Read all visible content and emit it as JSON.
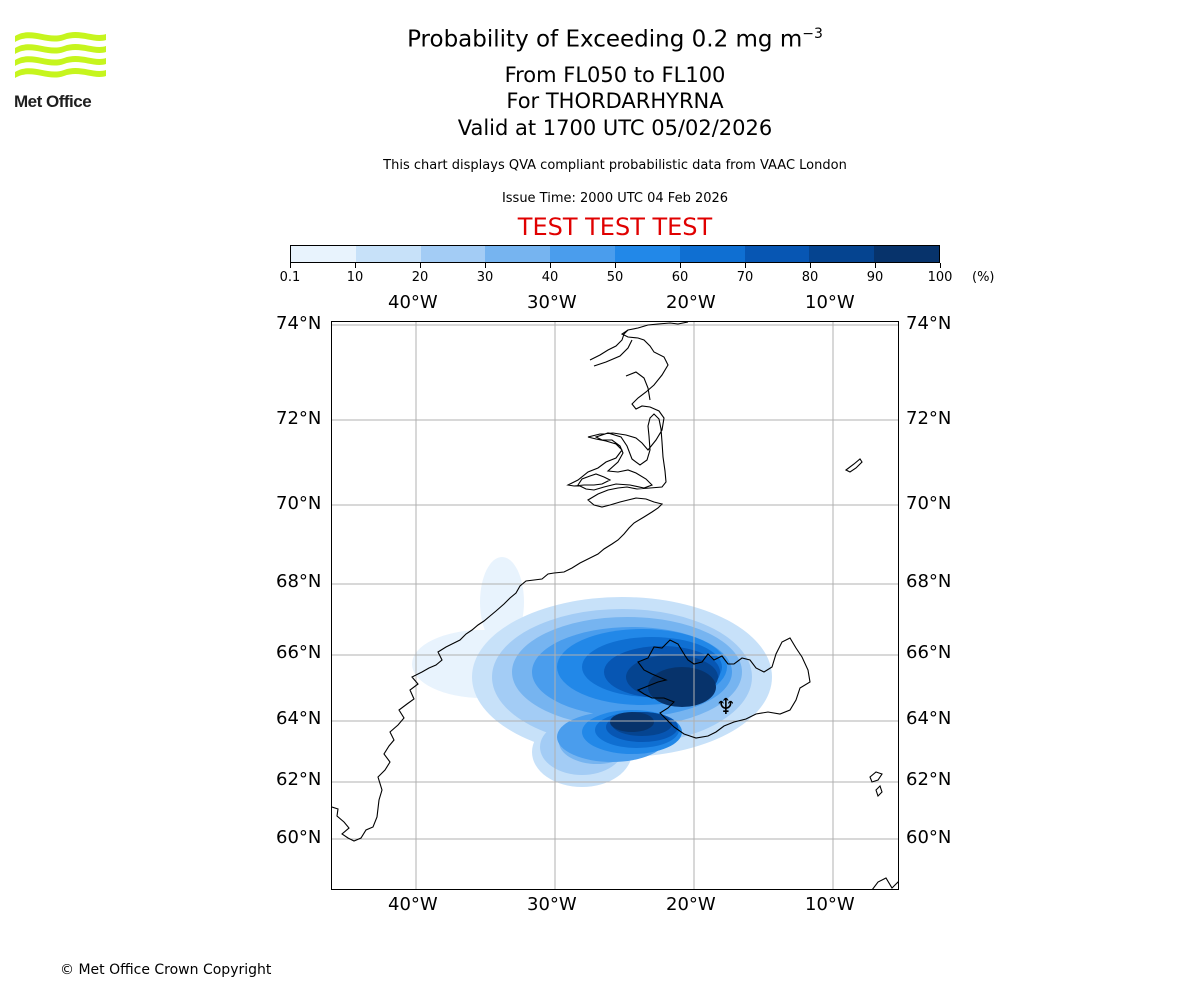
{
  "header": {
    "logo_text": "Met Office",
    "title_main": "Probability of Exceeding 0.2 mg m",
    "title_exp": "−3",
    "flight_levels": "From FL050 to FL100",
    "volcano": "For THORDARHYRNA",
    "valid_time": "Valid at 1700 UTC 05/02/2026",
    "description": "This chart displays QVA compliant probabilistic data from VAAC London",
    "issue_time": "Issue Time: 2000 UTC 04 Feb 2026",
    "test_banner": "TEST TEST TEST"
  },
  "colorbar": {
    "ticks": [
      "0.1",
      "10",
      "20",
      "30",
      "40",
      "50",
      "60",
      "70",
      "80",
      "90",
      "100"
    ],
    "unit": "(%)",
    "colors": [
      "#e8f3fd",
      "#c7e1f9",
      "#a3ccf5",
      "#76b4f0",
      "#4a9ded",
      "#2288e8",
      "#0f6fd2",
      "#0756b3",
      "#054490",
      "#07336b"
    ]
  },
  "map": {
    "lon_labels": [
      "40°W",
      "30°W",
      "20°W",
      "10°W"
    ],
    "lat_labels": [
      "74°N",
      "72°N",
      "70°N",
      "68°N",
      "66°N",
      "64°N",
      "62°N",
      "60°N"
    ],
    "volcano_symbol": "♆"
  },
  "footer": {
    "copyright": "© Met Office Crown Copyright"
  }
}
